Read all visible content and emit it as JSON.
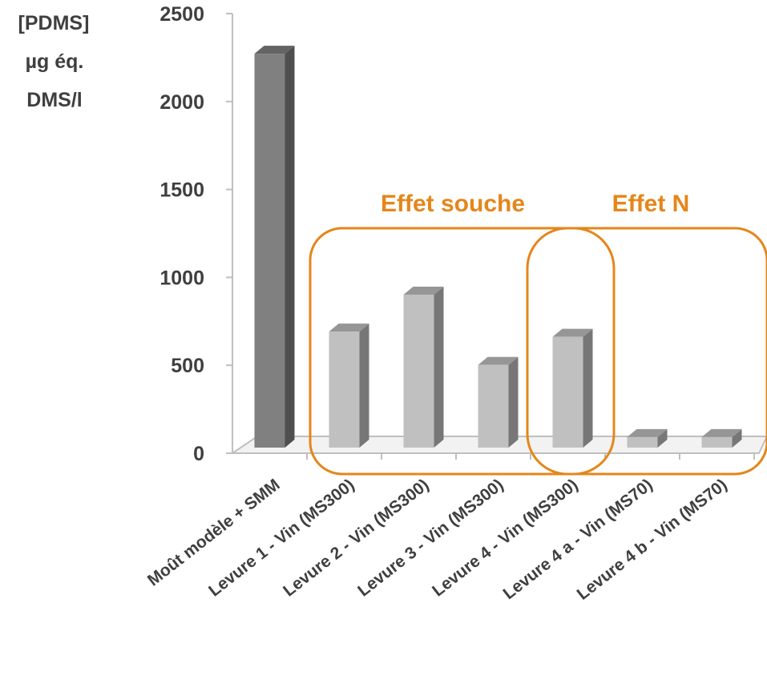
{
  "chart_data": {
    "type": "bar",
    "title": "",
    "xlabel": "",
    "ylabel_lines": [
      "[PDMS]",
      "µg éq.",
      "DMS/l"
    ],
    "ylim": [
      0,
      2500
    ],
    "yticks": [
      0,
      500,
      1000,
      1500,
      2000,
      2500
    ],
    "categories": [
      "Moût modèle + SMM",
      "Levure 1 - Vin (MS300)",
      "Levure 2 - Vin (MS300)",
      "Levure 3 - Vin (MS300)",
      "Levure 4 - Vin (MS300)",
      "Levure 4  a - Vin (MS70)",
      "Levure 4 b - Vin (MS70)"
    ],
    "values": [
      2240,
      660,
      870,
      470,
      630,
      60,
      60
    ],
    "bar_colors": [
      "#808080",
      "#c0c0c0",
      "#c0c0c0",
      "#c0c0c0",
      "#c0c0c0",
      "#c0c0c0",
      "#c0c0c0"
    ],
    "grid": false,
    "style": "3d-column",
    "annotations": [
      {
        "text": "Effet souche",
        "color": "#e5861a"
      },
      {
        "text": "Effet N",
        "color": "#e5861a"
      }
    ],
    "accent_color": "#e5861a"
  }
}
